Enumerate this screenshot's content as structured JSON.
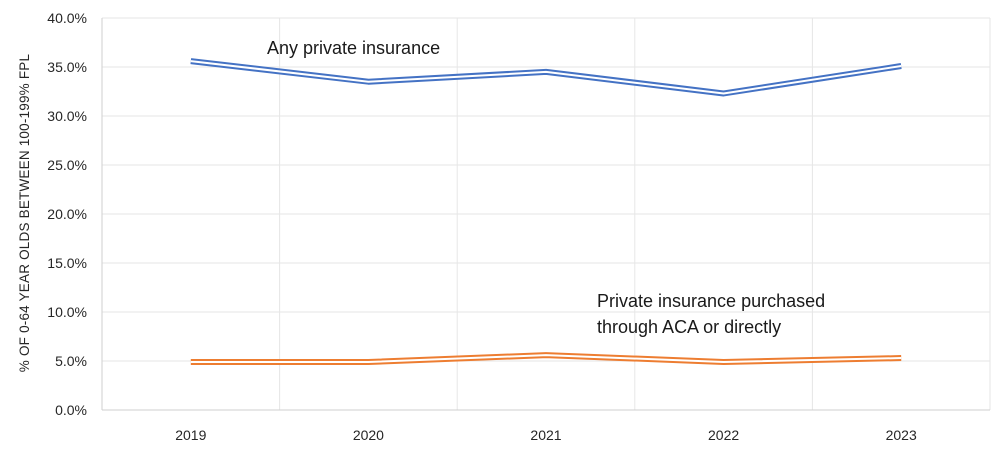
{
  "chart_data": {
    "type": "line",
    "title": "",
    "xlabel": "",
    "ylabel": "% OF 0-64 YEAR OLDS BETWEEN 100-199% FPL",
    "categories": [
      "2019",
      "2020",
      "2021",
      "2022",
      "2023"
    ],
    "ylim": [
      0,
      40
    ],
    "yticks": [
      "0.0%",
      "5.0%",
      "10.0%",
      "15.0%",
      "20.0%",
      "25.0%",
      "30.0%",
      "35.0%",
      "40.0%"
    ],
    "grid": true,
    "series": [
      {
        "name": "Any private insurance",
        "color": "#4472c4",
        "values": [
          35.6,
          33.5,
          34.5,
          32.3,
          35.1
        ]
      },
      {
        "name": "Private insurance purchased through ACA or directly",
        "color": "#ed7d31",
        "values": [
          4.9,
          4.9,
          5.6,
          4.9,
          5.3
        ]
      }
    ],
    "annotations": [
      {
        "text": "Any private insurance",
        "series": 0
      },
      {
        "lines": [
          "Private insurance purchased",
          "through ACA or directly"
        ],
        "series": 1
      }
    ]
  }
}
